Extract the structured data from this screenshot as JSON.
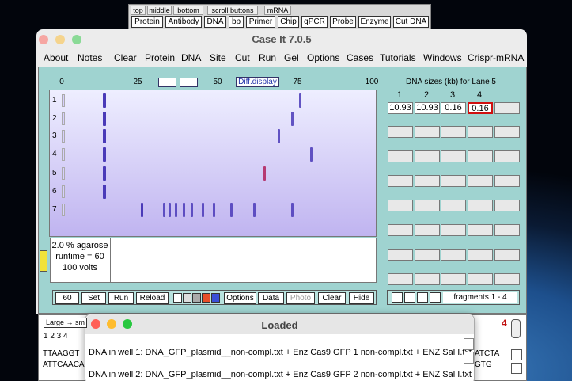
{
  "toolbar": {
    "tabs": [
      "top",
      "middle",
      "bottom",
      "scroll buttons",
      "mRNA"
    ],
    "buttons": [
      "Protein",
      "Antibody",
      "DNA",
      "bp",
      "Primer",
      "Chip",
      "qPCR",
      "Probe",
      "Enzyme",
      "Cut DNA"
    ]
  },
  "window": {
    "title": "Case It 7.0.5",
    "menu": [
      "About",
      "Notes",
      "Clear",
      "Protein",
      "DNA",
      "Site",
      "Cut",
      "Run",
      "Gel",
      "Options",
      "Cases",
      "Tutorials",
      "Windows",
      "Crispr-mRNA"
    ]
  },
  "gel": {
    "ruler": [
      "0",
      "25",
      "50",
      "75",
      "100"
    ],
    "diff_button": "Diff.display",
    "lane_labels": [
      "1",
      "2",
      "3",
      "4",
      "5",
      "6",
      "7"
    ],
    "conditions": [
      "2.0 % agarose",
      "runtime = 60",
      "100 volts"
    ]
  },
  "sizes": {
    "title": "DNA sizes (kb) for Lane 5",
    "columns": [
      "1",
      "2",
      "3",
      "4"
    ],
    "values": [
      "10.93",
      "10.93",
      "0.16",
      "0.16"
    ]
  },
  "controls": {
    "runtime": "60",
    "buttons": [
      "Set",
      "Run",
      "Reload"
    ],
    "buttons2": [
      "Options",
      "Data",
      "Photo",
      "Clear",
      "Hide"
    ],
    "fragments": "fragments 1 - 4"
  },
  "sequence_window": {
    "legend": "Large → sm",
    "lanes": "1 2 3 4",
    "lines": [
      "TTAAGGT",
      "ATTCAACA"
    ],
    "count": "4",
    "right_lines": [
      "ATCTA",
      "GTG"
    ]
  },
  "dialog": {
    "title": "Loaded",
    "lines": [
      "DNA in well 1:  DNA_GFP_plasmid__non-compl.txt + Enz Cas9 GFP 1 non-compl.txt + ENZ Sal I.txt",
      "DNA in well 2:  DNA_GFP_plasmid__non-compl.txt + Enz Cas9 GFP 2 non-compl.txt + ENZ Sal I.txt"
    ]
  }
}
